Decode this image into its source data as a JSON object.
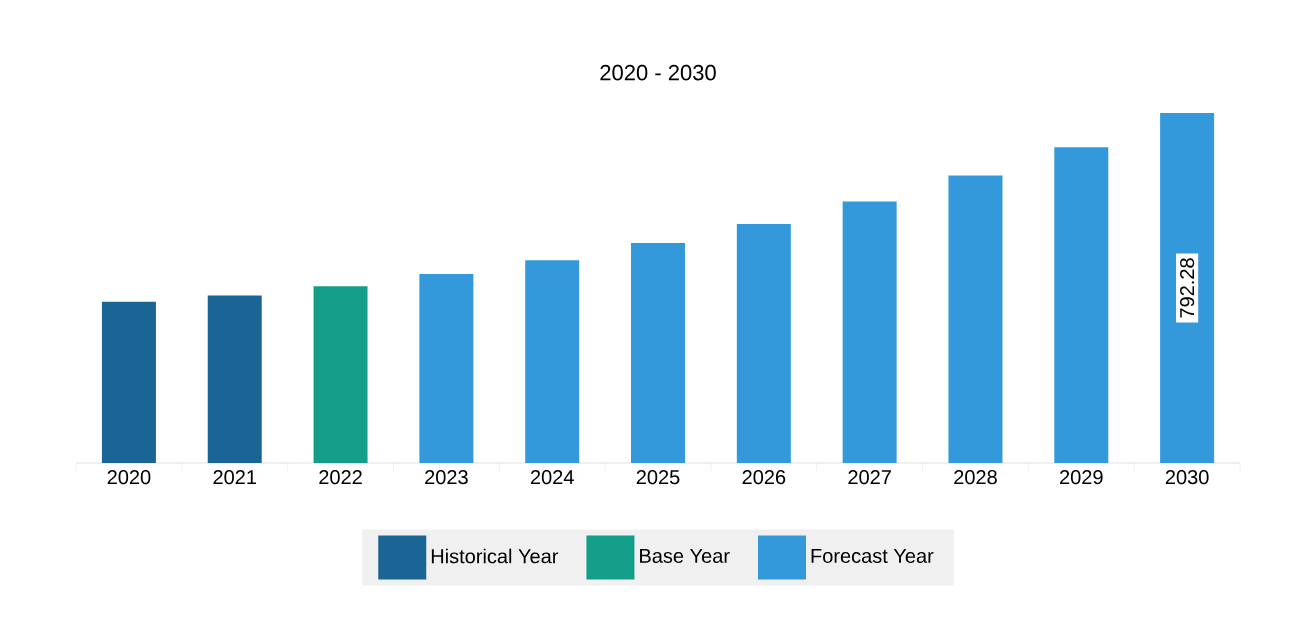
{
  "chart_data": {
    "type": "bar",
    "title": "2020 - 2030",
    "categories": [
      "2020",
      "2021",
      "2022",
      "2023",
      "2024",
      "2025",
      "2026",
      "2027",
      "2028",
      "2029",
      "2030"
    ],
    "series": [
      {
        "name": "Historical Year",
        "color": "#1a6496",
        "values": [
          365,
          379,
          null,
          null,
          null,
          null,
          null,
          null,
          null,
          null,
          null
        ]
      },
      {
        "name": "Base Year",
        "color": "#139e8a",
        "values": [
          null,
          null,
          400,
          null,
          null,
          null,
          null,
          null,
          null,
          null,
          null
        ]
      },
      {
        "name": "Forecast Year",
        "color": "#3399db",
        "values": [
          null,
          null,
          null,
          428,
          459,
          498,
          541,
          592,
          651,
          715,
          792.28
        ],
        "value_labels": [
          null,
          null,
          null,
          null,
          null,
          null,
          null,
          null,
          null,
          null,
          "792.28"
        ]
      }
    ],
    "legend": "bottom"
  }
}
